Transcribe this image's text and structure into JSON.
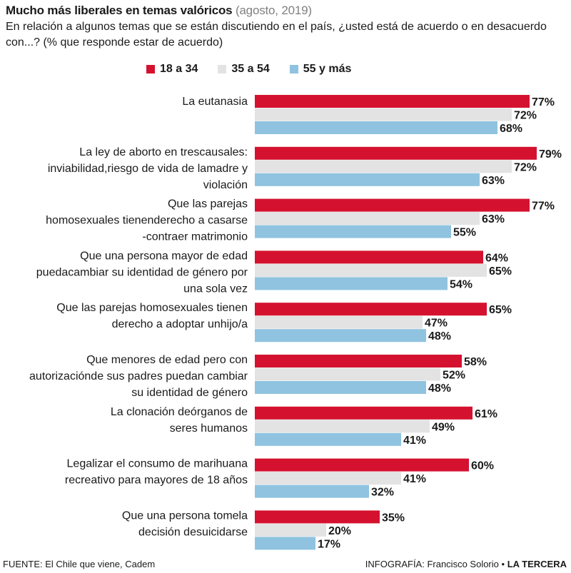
{
  "header": {
    "title_bold": "Mucho más liberales en temas valóricos",
    "title_light": "(agosto, 2019)",
    "subtitle": "En relación a algunos temas que se están discutiendo en el país, ¿usted está de acuerdo o en desacuerdo con...? (% que responde estar de acuerdo)"
  },
  "colors": {
    "series_18_34": "#d4122f",
    "series_35_54": "#e3e3e3",
    "series_55_plus": "#8fc3e0",
    "text": "#1a1a1a"
  },
  "footer": {
    "source": "FUENTE: El Chile que viene, Cadem",
    "credit": "INFOGRAFÍA: Francisco Solorio",
    "separator": "•",
    "brand": "LA TERCERA"
  },
  "chart_data": {
    "type": "bar",
    "orientation": "horizontal",
    "categories": [
      [
        "La eutanasia"
      ],
      [
        "La ley de aborto en trescausales:",
        "inviabilidad,riesgo de vida de lamadre y",
        "violación"
      ],
      [
        "Que las parejas",
        "homosexuales tienenderecho a casarse",
        "-contraer matrimonio"
      ],
      [
        "Que una persona mayor de edad",
        "puedacambiar su identidad de género por",
        "una sola vez"
      ],
      [
        "Que las parejas homosexuales tienen",
        "derecho a adoptar unhijo/a"
      ],
      [
        "Que menores de edad pero con",
        "autorizaciónde sus padres puedan cambiar",
        "su identidad de género"
      ],
      [
        "La clonación deórganos de",
        "seres humanos"
      ],
      [
        "Legalizar el consumo de marihuana",
        "recreativo para mayores de 18 años"
      ],
      [
        "Que una persona tomela",
        "decisión desuicidarse"
      ]
    ],
    "series": [
      {
        "name": "18 a 34",
        "values": [
          77,
          79,
          77,
          64,
          65,
          58,
          61,
          60,
          35
        ]
      },
      {
        "name": "35 a 54",
        "values": [
          72,
          72,
          63,
          65,
          47,
          52,
          49,
          41,
          20
        ]
      },
      {
        "name": "55 y más",
        "values": [
          68,
          63,
          55,
          54,
          48,
          48,
          41,
          32,
          17
        ]
      }
    ],
    "value_suffix": "%",
    "legend_position": "top",
    "grid": false
  }
}
